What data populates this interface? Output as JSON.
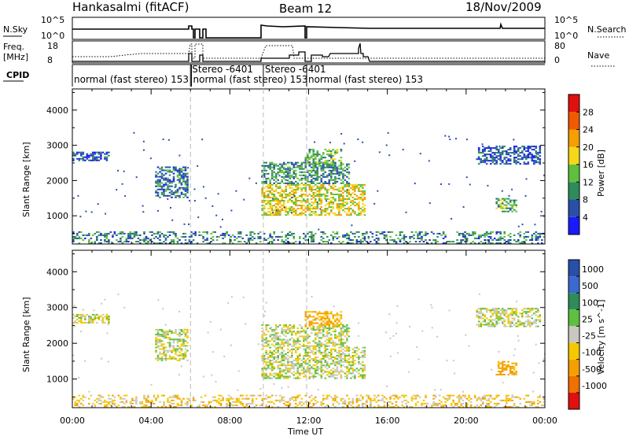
{
  "header": {
    "station": "Hankasalmi (fitACF)",
    "beam": "Beam 12",
    "date": "18/Nov/2009"
  },
  "top_panels": {
    "nsky_label": "N.Sky",
    "nsky_ticks": [
      "10^5",
      "10^0"
    ],
    "nsearch_label": "N.Search",
    "freq_label": "Freq.",
    "freq_unit": "[MHz]",
    "freq_ticks": [
      "18",
      "8"
    ],
    "nave_label": "Nave",
    "nave_ticks": [
      "80",
      "0"
    ],
    "cpid_label": "CPID",
    "cpid_segments": [
      {
        "label": "normal (fast stereo) 153",
        "start_h": 0.0
      },
      {
        "label": "Stereo -6401",
        "start_h": 6.0
      },
      {
        "label": "normal (fast stereo) 153",
        "start_h": 6.05
      },
      {
        "label": "Stereo -6401",
        "start_h": 9.7
      },
      {
        "label": "normal (fast stereo) 153",
        "start_h": 11.9
      }
    ]
  },
  "colors": {
    "power_scale": [
      "#1a1aff",
      "#2a4fa8",
      "#2e8c5a",
      "#5fc040",
      "#f5d81a",
      "#f5a000",
      "#f05a00",
      "#e01010"
    ],
    "velocity_scale": [
      "#2a4fa8",
      "#3a6ad0",
      "#2e8c5a",
      "#5fc040",
      "#c8c8c0",
      "#f5c800",
      "#f5a000",
      "#f07000",
      "#e01010"
    ]
  },
  "chart_data": [
    {
      "type": "heatmap",
      "title": "Power",
      "xlabel": "Time UT",
      "ylabel": "Slant Range [km]",
      "x_ticks": [
        "00:00",
        "04:00",
        "08:00",
        "12:00",
        "16:00",
        "20:00",
        "00:00"
      ],
      "xlim_hours": [
        0,
        24
      ],
      "y_ticks": [
        1000,
        2000,
        3000,
        4000
      ],
      "ylim": [
        200,
        4600
      ],
      "colorbar_label": "Power [dB]",
      "colorbar_ticks": [
        4,
        8,
        12,
        16,
        20,
        24,
        28
      ],
      "echo_regions": [
        {
          "t0": 0.0,
          "t1": 1.9,
          "r0": 2550,
          "r1": 2800,
          "value_db": 6
        },
        {
          "t0": 0.0,
          "t1": 24.0,
          "r0": 200,
          "r1": 550,
          "value_db": 9
        },
        {
          "t0": 4.2,
          "t1": 5.8,
          "r0": 1500,
          "r1": 2400,
          "value_db": 8
        },
        {
          "t0": 9.6,
          "t1": 14.8,
          "r0": 1000,
          "r1": 1900,
          "value_db": 18
        },
        {
          "t0": 9.6,
          "t1": 14.0,
          "r0": 1900,
          "r1": 2500,
          "value_db": 10
        },
        {
          "t0": 11.8,
          "t1": 13.6,
          "r0": 2450,
          "r1": 2900,
          "value_db": 13
        },
        {
          "t0": 20.5,
          "t1": 23.8,
          "r0": 2450,
          "r1": 2950,
          "value_db": 6
        },
        {
          "t0": 21.5,
          "t1": 22.6,
          "r0": 1100,
          "r1": 1500,
          "value_db": 12
        }
      ]
    },
    {
      "type": "heatmap",
      "title": "Velocity",
      "xlabel": "Time UT",
      "ylabel": "Slant Range [km]",
      "x_ticks": [
        "00:00",
        "04:00",
        "08:00",
        "12:00",
        "16:00",
        "20:00",
        "00:00"
      ],
      "xlim_hours": [
        0,
        24
      ],
      "y_ticks": [
        1000,
        2000,
        3000,
        4000
      ],
      "ylim": [
        200,
        4600
      ],
      "colorbar_label": "Velocity [m s^-1]",
      "colorbar_ticks": [
        1000,
        500,
        100,
        25,
        -25,
        -100,
        -500,
        -1000
      ],
      "echo_regions": [
        {
          "t0": 0.0,
          "t1": 1.9,
          "r0": 2550,
          "r1": 2800,
          "value_ms": 0
        },
        {
          "t0": 0.0,
          "t1": 24.0,
          "r0": 200,
          "r1": 550,
          "value_ms": -60
        },
        {
          "t0": 4.2,
          "t1": 5.8,
          "r0": 1500,
          "r1": 2400,
          "value_ms": 0
        },
        {
          "t0": 9.6,
          "t1": 14.8,
          "r0": 1000,
          "r1": 1900,
          "value_ms": 0
        },
        {
          "t0": 9.6,
          "t1": 14.0,
          "r0": 1900,
          "r1": 2500,
          "value_ms": 0
        },
        {
          "t0": 11.8,
          "t1": 13.6,
          "r0": 2450,
          "r1": 2900,
          "value_ms": -120
        },
        {
          "t0": 20.5,
          "t1": 23.8,
          "r0": 2450,
          "r1": 2950,
          "value_ms": 0
        },
        {
          "t0": 21.5,
          "t1": 22.6,
          "r0": 1100,
          "r1": 1500,
          "value_ms": -150
        }
      ]
    }
  ]
}
